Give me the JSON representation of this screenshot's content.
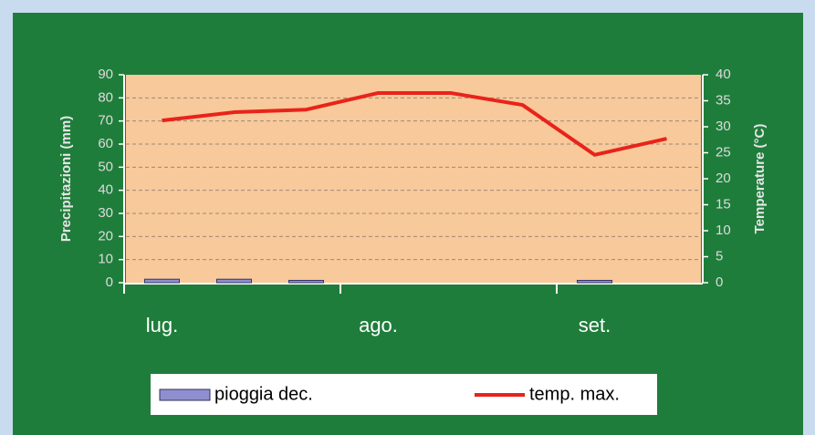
{
  "chart_data": {
    "type": "bar-line",
    "categories": [
      "lug.",
      null,
      null,
      "ago.",
      null,
      null,
      "set.",
      null
    ],
    "series": [
      {
        "name": "pioggia dec.",
        "type": "bar",
        "color": "#8f8fd0",
        "values": [
          1.5,
          1.5,
          1,
          0,
          0,
          0,
          1,
          0
        ]
      },
      {
        "name": "temp. max.",
        "type": "line",
        "axis": "y2",
        "color": "#e8231b",
        "values": [
          31.2,
          32.8,
          33.3,
          36.5,
          36.5,
          34.2,
          24.6,
          27.7
        ]
      }
    ],
    "ylabel": "Precipitazioni (mm)",
    "y2label": "Temperature (°C)",
    "ylim": [
      0,
      90
    ],
    "yticks": [
      0,
      10,
      20,
      30,
      40,
      50,
      60,
      70,
      80,
      90
    ],
    "y2lim": [
      0,
      40
    ],
    "y2ticks": [
      0,
      5,
      10,
      15,
      20,
      25,
      30,
      35,
      40
    ],
    "grid": true,
    "legend": "bottom"
  }
}
